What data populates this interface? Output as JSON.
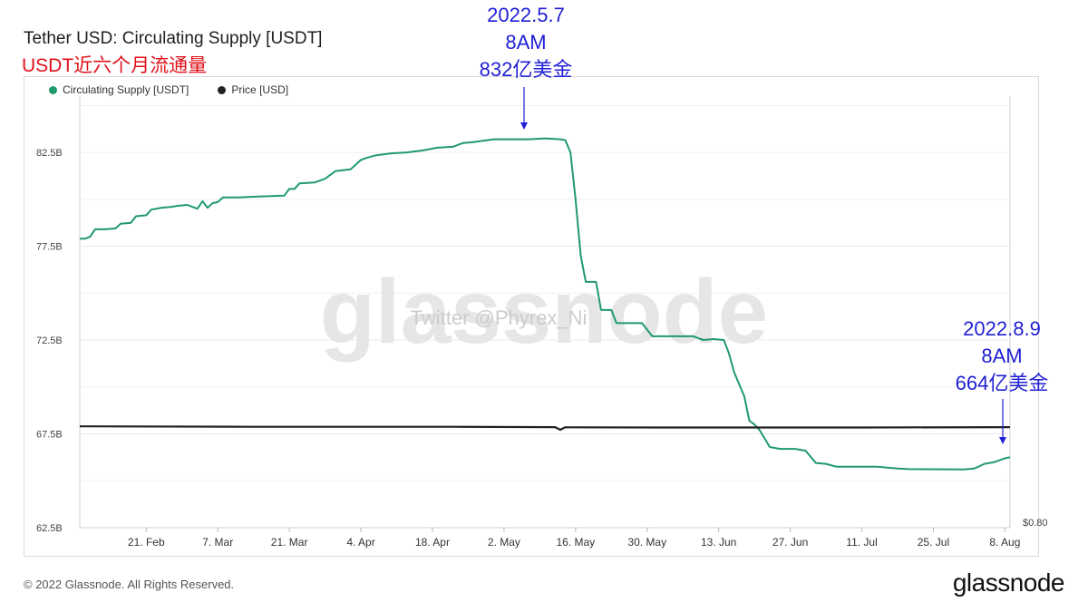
{
  "header": {
    "title": "Tether USD: Circulating Supply [USDT]",
    "subtitle": "USDT近六个月流通量"
  },
  "legend": [
    {
      "label": "Circulating Supply [USDT]",
      "color": "#1f9a6c"
    },
    {
      "label": "Price [USD]",
      "color": "#222222"
    }
  ],
  "annotations": {
    "peak": {
      "date": "2022.5.7",
      "time": "8AM",
      "value": "832亿美金"
    },
    "latest": {
      "date": "2022.8.9",
      "time": "8AM",
      "value": "664亿美金"
    }
  },
  "watermark": {
    "logo": "glassnode",
    "handle": "Twitter @Phyrex_Ni"
  },
  "footer": {
    "copyright": "© 2022 Glassnode. All Rights Reserved.",
    "brand": "glassnode"
  },
  "chart_data": {
    "type": "line",
    "y_ticks": [
      "62.5B",
      "67.5B",
      "72.5B",
      "77.5B",
      "82.5B"
    ],
    "y_tick_values": [
      62.5,
      67.5,
      72.5,
      77.5,
      82.5
    ],
    "ylim": [
      62.5,
      85.5
    ],
    "right_axis_label": "$0.80",
    "x_tick_labels": [
      "21. Feb",
      "7. Mar",
      "21. Mar",
      "4. Apr",
      "18. Apr",
      "2. May",
      "16. May",
      "30. May",
      "13. Jun",
      "27. Jun",
      "11. Jul",
      "25. Jul",
      "8. Aug"
    ],
    "x_tick_days": [
      0,
      14,
      28,
      42,
      56,
      70,
      84,
      98,
      112,
      126,
      140,
      154,
      168
    ],
    "xlim_days": [
      -13,
      169
    ],
    "series": [
      {
        "name": "Circulating Supply [USDT]",
        "color": "#1f9a6c",
        "points": [
          [
            -13,
            77.9
          ],
          [
            -12,
            77.9
          ],
          [
            -11,
            78.0
          ],
          [
            -10,
            78.4
          ],
          [
            -8,
            78.4
          ],
          [
            -6,
            78.45
          ],
          [
            -5,
            78.7
          ],
          [
            -3,
            78.75
          ],
          [
            -2,
            79.1
          ],
          [
            0,
            79.15
          ],
          [
            1,
            79.45
          ],
          [
            3,
            79.55
          ],
          [
            5,
            79.6
          ],
          [
            6,
            79.65
          ],
          [
            8,
            79.7
          ],
          [
            9,
            79.6
          ],
          [
            10,
            79.5
          ],
          [
            11,
            79.9
          ],
          [
            12,
            79.55
          ],
          [
            13,
            79.8
          ],
          [
            14,
            79.85
          ],
          [
            15,
            80.1
          ],
          [
            18,
            80.1
          ],
          [
            22,
            80.15
          ],
          [
            27,
            80.2
          ],
          [
            28,
            80.55
          ],
          [
            29,
            80.55
          ],
          [
            30,
            80.85
          ],
          [
            33,
            80.9
          ],
          [
            35,
            81.1
          ],
          [
            37,
            81.5
          ],
          [
            40,
            81.6
          ],
          [
            41,
            81.85
          ],
          [
            42,
            82.1
          ],
          [
            43,
            82.2
          ],
          [
            45,
            82.35
          ],
          [
            48,
            82.45
          ],
          [
            51,
            82.5
          ],
          [
            54,
            82.6
          ],
          [
            57,
            82.75
          ],
          [
            60,
            82.8
          ],
          [
            62,
            83.0
          ],
          [
            64,
            83.05
          ],
          [
            68,
            83.2
          ],
          [
            75,
            83.2
          ],
          [
            78,
            83.25
          ],
          [
            81,
            83.2
          ],
          [
            82,
            83.15
          ],
          [
            83,
            82.5
          ],
          [
            84,
            80.0
          ],
          [
            85,
            77.0
          ],
          [
            86,
            75.6
          ],
          [
            88,
            75.6
          ],
          [
            89,
            74.1
          ],
          [
            91,
            74.1
          ],
          [
            92,
            73.4
          ],
          [
            97,
            73.4
          ],
          [
            99,
            72.7
          ],
          [
            107,
            72.7
          ],
          [
            109,
            72.5
          ],
          [
            111,
            72.55
          ],
          [
            113,
            72.5
          ],
          [
            114,
            71.8
          ],
          [
            115,
            70.8
          ],
          [
            117,
            69.5
          ],
          [
            118,
            68.2
          ],
          [
            119,
            68.0
          ],
          [
            120,
            67.7
          ],
          [
            122,
            66.8
          ],
          [
            124,
            66.7
          ],
          [
            127,
            66.7
          ],
          [
            129,
            66.6
          ],
          [
            131,
            65.95
          ],
          [
            133,
            65.9
          ],
          [
            135,
            65.75
          ],
          [
            143,
            65.75
          ],
          [
            147,
            65.65
          ],
          [
            149,
            65.62
          ],
          [
            160,
            65.6
          ],
          [
            162,
            65.65
          ],
          [
            164,
            65.9
          ],
          [
            166,
            66.0
          ],
          [
            168,
            66.2
          ],
          [
            172,
            66.25
          ],
          [
            174,
            66.25
          ]
        ]
      },
      {
        "name": "Price [USD]",
        "color": "#222222",
        "points": [
          [
            -13,
            67.9
          ],
          [
            20,
            67.88
          ],
          [
            60,
            67.88
          ],
          [
            80,
            67.86
          ],
          [
            81,
            67.72
          ],
          [
            82,
            67.85
          ],
          [
            100,
            67.84
          ],
          [
            140,
            67.84
          ],
          [
            174,
            67.86
          ]
        ]
      }
    ],
    "grid": true,
    "legend_position": "top-left"
  }
}
